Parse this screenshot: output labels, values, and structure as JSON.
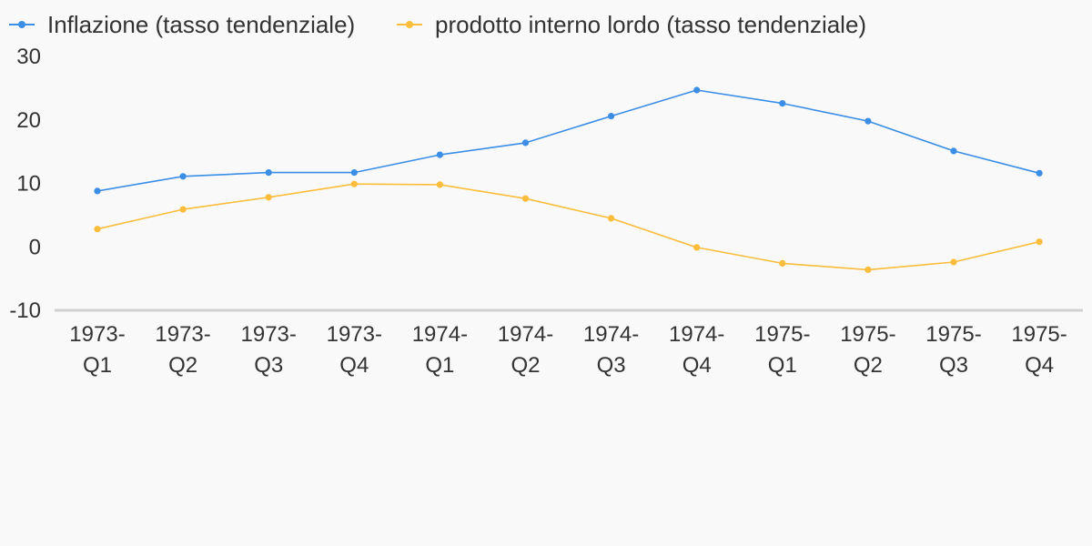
{
  "chart_data": {
    "type": "line",
    "categories": [
      [
        "1973-",
        "Q1"
      ],
      [
        "1973-",
        "Q2"
      ],
      [
        "1973-",
        "Q3"
      ],
      [
        "1973-",
        "Q4"
      ],
      [
        "1974-",
        "Q1"
      ],
      [
        "1974-",
        "Q2"
      ],
      [
        "1974-",
        "Q3"
      ],
      [
        "1974-",
        "Q4"
      ],
      [
        "1975-",
        "Q1"
      ],
      [
        "1975-",
        "Q2"
      ],
      [
        "1975-",
        "Q3"
      ],
      [
        "1975-",
        "Q4"
      ]
    ],
    "series": [
      {
        "name": "Inflazione (tasso tendenziale)",
        "color": "#3a8ee6",
        "values": [
          8.8,
          11.1,
          11.7,
          11.7,
          14.5,
          16.4,
          20.6,
          24.7,
          22.6,
          19.8,
          15.1,
          11.6
        ]
      },
      {
        "name": "prodotto interno lordo (tasso tendenziale)",
        "color": "#fbbd3b",
        "values": [
          2.8,
          5.9,
          7.8,
          9.9,
          9.8,
          7.6,
          4.5,
          -0.1,
          -2.6,
          -3.6,
          -2.4,
          0.8
        ]
      }
    ],
    "yticks": [
      "30",
      "20",
      "10",
      "0",
      "-10"
    ],
    "ylim": [
      -10,
      30
    ],
    "grid": false,
    "legend": "top-left",
    "axis_color": "#d0d0d0"
  }
}
